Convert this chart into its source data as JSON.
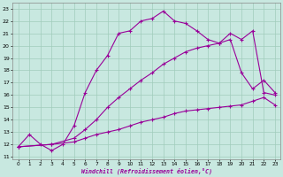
{
  "xlabel": "Windchill (Refroidissement éolien,°C)",
  "bg_color": "#c8e8e0",
  "grid_color": "#a0ccbb",
  "line_color": "#990099",
  "xlim": [
    -0.5,
    23.5
  ],
  "ylim": [
    10.8,
    23.5
  ],
  "xtick_labels": [
    "0",
    "1",
    "2",
    "3",
    "4",
    "5",
    "6",
    "7",
    "8",
    "9",
    "10",
    "11",
    "12",
    "13",
    "14",
    "15",
    "16",
    "17",
    "18",
    "19",
    "20",
    "21",
    "22",
    "23"
  ],
  "ytick_labels": [
    "11",
    "12",
    "13",
    "14",
    "15",
    "16",
    "17",
    "18",
    "19",
    "20",
    "21",
    "22",
    "23"
  ],
  "lines": [
    {
      "x": [
        0,
        1,
        2,
        3,
        4,
        5,
        6,
        7,
        8,
        9,
        10,
        11,
        12,
        13,
        14,
        15,
        16,
        17,
        18,
        19,
        20,
        21,
        22,
        23
      ],
      "y": [
        11.8,
        12.8,
        12.0,
        11.5,
        12.0,
        13.5,
        16.2,
        18.0,
        19.2,
        21.0,
        21.2,
        22.0,
        22.2,
        22.8,
        22.0,
        21.8,
        21.2,
        20.5,
        20.2,
        21.0,
        20.5,
        21.2,
        16.2,
        16.0
      ]
    },
    {
      "x": [
        0,
        3,
        5,
        6,
        7,
        8,
        9,
        10,
        11,
        12,
        13,
        14,
        15,
        16,
        17,
        18,
        19,
        20,
        21,
        22,
        23
      ],
      "y": [
        11.8,
        12.0,
        12.5,
        13.2,
        14.0,
        15.0,
        15.8,
        16.5,
        17.2,
        17.8,
        18.5,
        19.0,
        19.5,
        19.8,
        20.0,
        20.2,
        20.5,
        17.8,
        16.5,
        17.2,
        16.2
      ]
    },
    {
      "x": [
        0,
        3,
        5,
        6,
        7,
        8,
        9,
        10,
        11,
        12,
        13,
        14,
        15,
        16,
        17,
        18,
        19,
        20,
        21,
        22,
        23
      ],
      "y": [
        11.8,
        12.0,
        12.2,
        12.5,
        12.8,
        13.0,
        13.2,
        13.5,
        13.8,
        14.0,
        14.2,
        14.5,
        14.7,
        14.8,
        14.9,
        15.0,
        15.1,
        15.2,
        15.5,
        15.8,
        15.2
      ]
    }
  ]
}
